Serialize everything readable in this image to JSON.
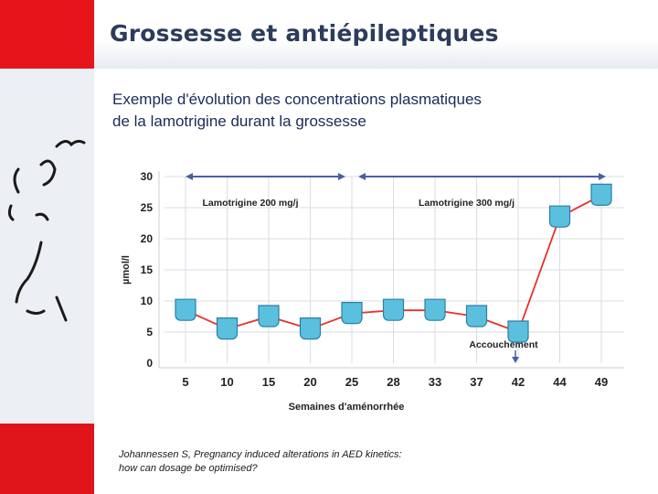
{
  "slide": {
    "title": "Grossesse et antiépileptiques",
    "subtitle_line1": "Exemple d'évolution des concentrations plasmatiques",
    "subtitle_line2": "de la lamotrigine durant la grossesse",
    "reference_line1": "Johannessen S, Pregnancy induced alterations in AED kinetics:",
    "reference_line2": "how can dosage be optimised?"
  },
  "colors": {
    "sidebar_red": "#e8141c",
    "marker_fill": "#5bc0de",
    "marker_stroke": "#2a7fa8",
    "line": "#e8302a",
    "arrow": "#4a5ea8",
    "grid": "#d8dde4"
  },
  "chart_data": {
    "type": "line",
    "xlabel": "Semaines d'aménorrhée",
    "ylabel": "µmol/l",
    "categories": [
      "5",
      "10",
      "15",
      "20",
      "25",
      "28",
      "33",
      "37",
      "42",
      "44",
      "49"
    ],
    "series": [
      {
        "values": [
          8.5,
          5.5,
          7.5,
          5.5,
          8,
          8.5,
          8.5,
          7.5,
          5,
          23.5,
          27
        ]
      }
    ],
    "yticks": [
      0,
      5,
      10,
      15,
      20,
      25,
      30
    ],
    "ylim": [
      0,
      30
    ],
    "grid": true,
    "dose_periods": [
      {
        "label": "Lamotrigine 200 mg/j",
        "from": "5",
        "to": "25"
      },
      {
        "label": "Lamotrigine 300 mg/j",
        "from": "25",
        "to": "49"
      }
    ],
    "annotation": {
      "label": "Accouchement",
      "at": "42"
    }
  }
}
